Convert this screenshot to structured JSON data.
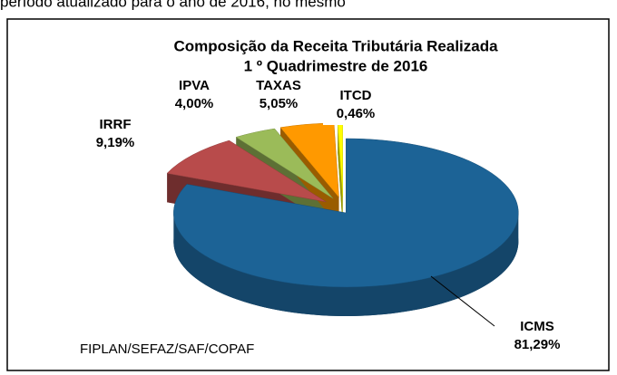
{
  "header": {
    "text": "período atualizado para o ano de 2016, no mesmo"
  },
  "chart_data": {
    "type": "pie3d",
    "title": "Composição da Receita Tributária Realizada",
    "subtitle": "1 º Quadrimestre de 2016",
    "categories": [
      "ICMS",
      "IRRF",
      "IPVA",
      "TAXAS",
      "ITCD"
    ],
    "values": [
      81.29,
      9.19,
      4.0,
      5.05,
      0.46
    ],
    "value_labels": [
      "81,29%",
      "9,19%",
      "4,00%",
      "5,05%",
      "0,46%"
    ],
    "colors": [
      "#1c6396",
      "#b84b4b",
      "#9bbb59",
      "#ff9900",
      "#ffff00"
    ],
    "source": "FIPLAN/SEFAZ/SAF/COPAF"
  }
}
